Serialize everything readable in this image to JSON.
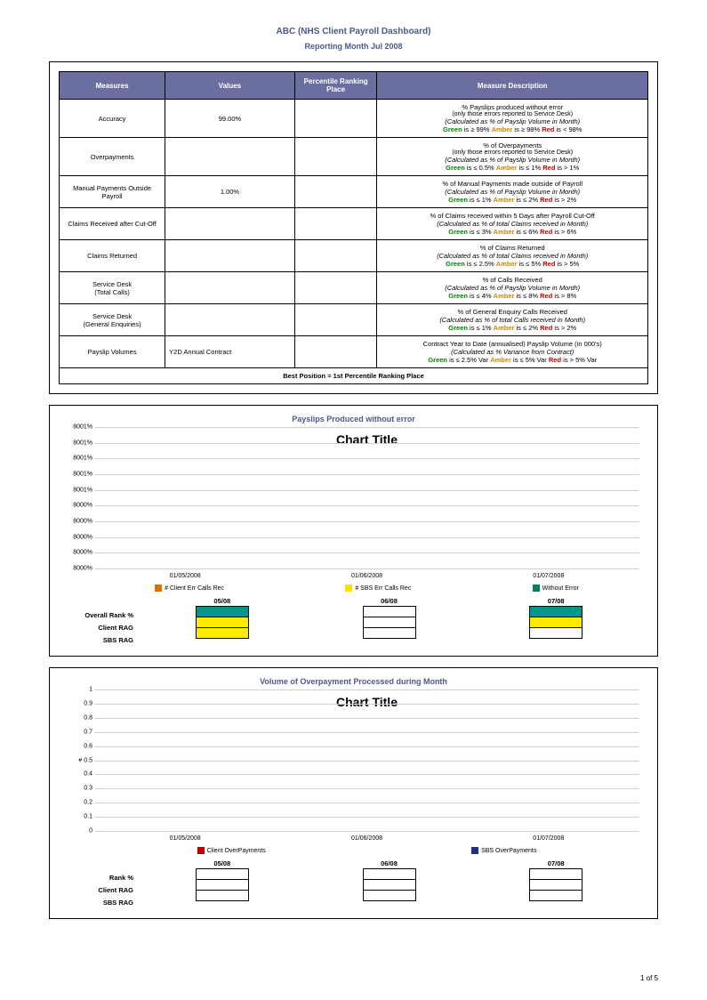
{
  "header": {
    "title": "ABC (NHS Client Payroll Dashboard)",
    "subtitle": "Reporting Month Jul 2008"
  },
  "table": {
    "columns": [
      "Measures",
      "Values",
      "Percentile Ranking Place",
      "Measure Description"
    ],
    "rows": [
      {
        "measure": "Accuracy",
        "value": "99.00%",
        "desc_main": "% Payslips produced without error",
        "desc_sub1": "(only those errors reported to Service Desk)",
        "desc_sub2": "(Calculated as % of Payslip Volume in Month)",
        "rag": "Green is ≥ 99%   Amber is ≥ 98%   Red is < 98%"
      },
      {
        "measure": "Overpayments",
        "value": "",
        "desc_main": "% of Overpayments",
        "desc_sub1": "(only those errors reported to Service Desk)",
        "desc_sub2": "(Calculated as % of Payslip Volume in Month)",
        "rag": "Green is ≤ 0.5%   Amber is ≤ 1%   Red is > 1%"
      },
      {
        "measure": "Manual Payments Outside Payroll",
        "value": "1.00%",
        "desc_main": "% of Manual Payments made outside of Payroll",
        "desc_sub1": "",
        "desc_sub2": "(Calculated as % of Payslip Volume in Month)",
        "rag": "Green is ≤ 1%   Amber is ≤ 2%   Red is > 2%"
      },
      {
        "measure": "Claims Received after Cut-Off",
        "value": "",
        "desc_main": "% of Claims received within 5 Days after Payroll Cut-Off",
        "desc_sub1": "",
        "desc_sub2": "(Calculated as % of total Claims received in Month)",
        "rag": "Green is ≤ 3%   Amber is ≤ 6%   Red is > 6%"
      },
      {
        "measure": "Claims Returned",
        "value": "",
        "desc_main": "% of Claims Returned",
        "desc_sub1": "",
        "desc_sub2": "(Calculated as % of total Claims received in Month)",
        "rag": "Green is ≤ 2.5%   Amber is ≤ 5%   Red is > 5%"
      },
      {
        "measure": "Service Desk\n(Total Calls)",
        "value": "",
        "desc_main": "% of Calls Received",
        "desc_sub1": "",
        "desc_sub2": "(Calculated as % of Payslip Volume in Month)",
        "rag": "Green is ≤ 4%   Amber is ≤ 8%   Red is > 8%"
      },
      {
        "measure": "Service Desk\n(General Enquiries)",
        "value": "",
        "desc_main": "% of General Enquiry Calls Received",
        "desc_sub1": "",
        "desc_sub2": "(Calculated as % of total Calls received in Month)",
        "rag": "Green is ≤ 1%   Amber is ≤ 2%   Red is > 2%"
      },
      {
        "measure": "Payslip Volumes",
        "value": "Y2D Annual                 Contract",
        "desc_main": "Contract Year to Date (annualised) Payslip Volume (in 000's)",
        "desc_sub1": "",
        "desc_sub2": "(Calculated as % Variance from Contract)",
        "rag": "Green is ≤ 2.5% Var   Amber is ≤ 5% Var   Red is > 5% Var"
      }
    ],
    "footer": "Best Position = 1st Percentile Ranking Place"
  },
  "chart1": {
    "title": "Payslips Produced without error",
    "plot_title": "Chart Title",
    "yticks": [
      "8001%",
      "8001%",
      "8001%",
      "8001%",
      "8001%",
      "8000%",
      "8000%",
      "8000%",
      "8000%",
      "8000%"
    ],
    "xticks": [
      "01/05/2008",
      "01/06/2008",
      "01/07/2008"
    ],
    "legend": [
      {
        "color": "sw-orange",
        "label": "# Client Err Calls Rec"
      },
      {
        "color": "sw-yellow",
        "label": "# SBS Err Calls Rec"
      },
      {
        "color": "sw-green",
        "label": "Without Error"
      }
    ],
    "rag_labels": [
      "Overall Rank %",
      "Client RAG",
      "SBS RAG"
    ],
    "rag_cols": [
      {
        "head": "05/08",
        "cells": [
          "bg-green",
          "bg-yellow",
          "bg-yellow"
        ]
      },
      {
        "head": "06/08",
        "cells": [
          "bg-white",
          "bg-white",
          "bg-white"
        ]
      },
      {
        "head": "07/08",
        "cells": [
          "bg-green",
          "bg-yellow",
          "bg-white"
        ]
      }
    ]
  },
  "chart2": {
    "title": "Volume of Overpayment Processed during Month",
    "plot_title": "Chart Title",
    "yticks": [
      "1",
      "0.9",
      "0.8",
      "0.7",
      "0.6",
      "# 0.5",
      "0.4",
      "0.3",
      "0.2",
      "0.1",
      "0"
    ],
    "xticks": [
      "01/05/2008",
      "01/06/2008",
      "01/07/2008"
    ],
    "legend": [
      {
        "color": "sw-red",
        "label": "Client OverPayments"
      },
      {
        "color": "sw-navy",
        "label": "SBS OverPayments"
      }
    ],
    "rag_labels": [
      "Rank %",
      "Client RAG",
      "SBS RAG"
    ],
    "rag_cols": [
      {
        "head": "05/08",
        "cells": [
          "bg-white",
          "bg-white",
          "bg-white"
        ]
      },
      {
        "head": "06/08",
        "cells": [
          "bg-white",
          "bg-white",
          "bg-white"
        ]
      },
      {
        "head": "07/08",
        "cells": [
          "bg-white",
          "bg-white",
          "bg-white"
        ]
      }
    ]
  },
  "page_num": "1 of 5",
  "colors": {
    "header_bg": "#6b6fa0",
    "title_color": "#4a5a8a",
    "green": "#008000",
    "amber": "#cc8800",
    "red": "#cc0000",
    "grid": "#d0d0d0"
  }
}
